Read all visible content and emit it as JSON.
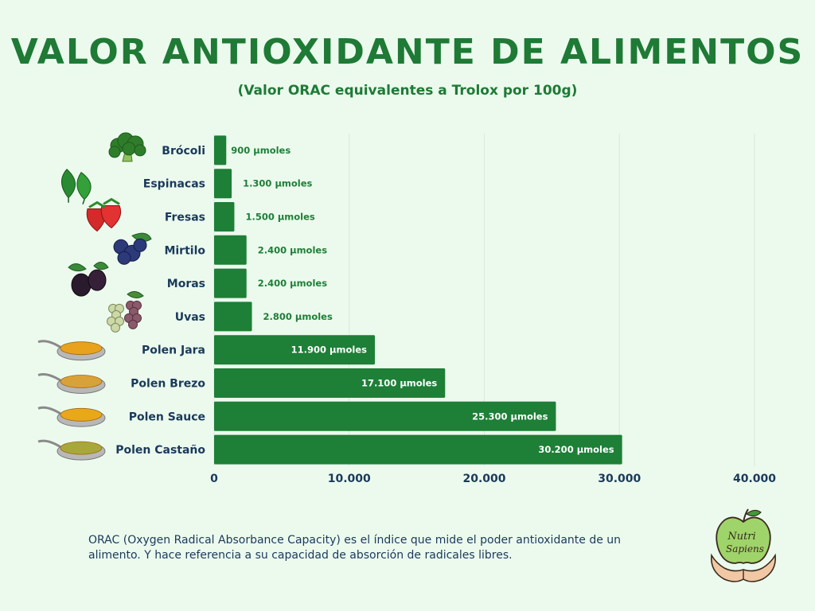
{
  "header": {
    "title": "VALOR ANTIOXIDANTE DE ALIMENTOS",
    "subtitle": "(Valor ORAC equivalentes a Trolox por 100g)"
  },
  "chart_data": {
    "type": "bar",
    "orientation": "horizontal",
    "title": "VALOR ANTIOXIDANTE DE ALIMENTOS",
    "subtitle": "(Valor ORAC equivalentes a Trolox por 100g)",
    "categories": [
      "Brócoli",
      "Espinacas",
      "Fresas",
      "Mirtilo",
      "Moras",
      "Uvas",
      "Polen Jara",
      "Polen Brezo",
      "Polen Sauce",
      "Polen Castaño"
    ],
    "values": [
      900,
      1300,
      1500,
      2400,
      2400,
      2800,
      11900,
      17100,
      25300,
      30200
    ],
    "data_labels": [
      "900 µmoles",
      "1.300 µmoles",
      "1.500 µmoles",
      "2.400 µmoles",
      "2.400 µmoles",
      "2.800 µmoles",
      "11.900 µmoles",
      "17.100 µmoles",
      "25.300 µmoles",
      "30.200 µmoles"
    ],
    "xlim": [
      0,
      40000
    ],
    "x_ticks": [
      0,
      10000,
      20000,
      30000,
      40000
    ],
    "x_tick_labels": [
      "0",
      "10.000",
      "20.000",
      "30.000",
      "40.000"
    ],
    "xlabel": "",
    "ylabel": "",
    "grid": true,
    "legend": "none",
    "colors": {
      "bar": "#1e7f37",
      "label_outside": "#1e7f37",
      "label_inside": "#ffffff",
      "grid": "#d7e8da"
    },
    "category_icons": [
      "broccoli-icon",
      "spinach-icon",
      "strawberry-icon",
      "blueberry-icon",
      "blackberry-icon",
      "grapes-icon",
      "pollen-spoon-icon",
      "pollen-spoon-icon",
      "pollen-spoon-icon",
      "pollen-spoon-icon"
    ]
  },
  "footnote": "ORAC (Oxygen Radical Absorbance Capacity) es el índice que mide el poder antioxidante de un alimento. Y hace referencia a su capacidad de absorción de radicales libres.",
  "logo": {
    "line1": "Nutri",
    "line2": "Sapiens"
  },
  "colors": {
    "background": "#ecfaee",
    "title": "#1e7a35",
    "text": "#1a3a5a"
  }
}
